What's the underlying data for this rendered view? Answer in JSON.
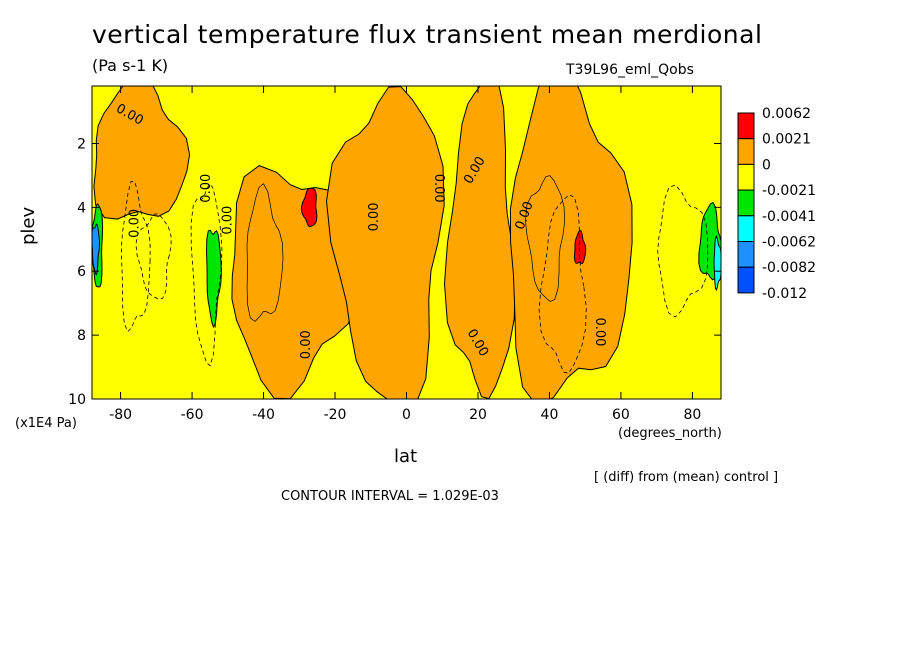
{
  "chart_data": {
    "type": "heatmap",
    "title": "vertical temperature flux transient mean merdional",
    "units": "(Pa s-1 K)",
    "run_id": "T39L96_eml_Qobs",
    "xlabel": "lat",
    "x_units": "(degrees_north)",
    "ylabel": "plev",
    "y_units": "(x1E4 Pa)",
    "xlim": [
      -88,
      88
    ],
    "ylim": [
      10,
      0.2
    ],
    "x_ticks": [
      -80,
      -60,
      -40,
      -20,
      0,
      20,
      40,
      60,
      80
    ],
    "y_ticks": [
      2,
      4,
      6,
      8,
      10
    ],
    "contour_labels": [
      "0.00",
      "0.00",
      "0.00",
      "0.00",
      "0.00",
      "0.00",
      "0.00",
      "0.00",
      "0.00",
      "0.00",
      "0.00"
    ],
    "contour_interval_text": "CONTOUR INTERVAL = 1.029E-03",
    "note": "[ (diff) from (mean) control ]",
    "legend": {
      "labels": [
        "0.0062",
        "0.0021",
        "0",
        "-0.0021",
        "-0.0041",
        "-0.0062",
        "-0.0082",
        "-0.012"
      ],
      "colors": [
        "#ff0000",
        "#ffa500",
        "#ffff00",
        "#00e600",
        "#00ffff",
        "#1e90ff",
        "#0050ff"
      ]
    },
    "levels_colors": {
      "positive_high": "#ff0000",
      "positive": "#ffa500",
      "near_zero": "#ffff00",
      "negative": "#00e600",
      "negative_strong": "#00ffff",
      "negative_stronger": "#1e90ff",
      "negative_max": "#0050ff"
    },
    "regions": [
      {
        "level": "positive",
        "x": [
          -88,
          -62
        ],
        "y": [
          0.2,
          4.5
        ],
        "note": "orange top-left hook"
      },
      {
        "level": "positive",
        "x": [
          -50,
          -15
        ],
        "y": [
          2.8,
          9.5
        ],
        "note": "orange SH midlatitude band"
      },
      {
        "level": "positive_high",
        "x": [
          -29,
          -25
        ],
        "y": [
          3.4,
          4.6
        ],
        "note": "red max near -27"
      },
      {
        "level": "positive",
        "x": [
          -20,
          10
        ],
        "y": [
          0.2,
          10
        ],
        "note": "orange central column"
      },
      {
        "level": "positive",
        "x": [
          12,
          30
        ],
        "y": [
          0.2,
          10
        ],
        "note": "orange NH subtropics"
      },
      {
        "level": "positive",
        "x": [
          28,
          62
        ],
        "y": [
          0.2,
          10
        ],
        "note": "orange NH midlatitude band"
      },
      {
        "level": "positive_high",
        "x": [
          47,
          50
        ],
        "y": [
          4.8,
          5.8
        ],
        "note": "red max near 48"
      },
      {
        "level": "negative",
        "x": [
          -56,
          -52
        ],
        "y": [
          4.6,
          7.5
        ],
        "note": "green patch near -54"
      },
      {
        "level": "negative",
        "x": [
          -88,
          -85
        ],
        "y": [
          3.9,
          6.5
        ],
        "note": "green edge SH"
      },
      {
        "level": "negative_stronger",
        "x": [
          -88,
          -86
        ],
        "y": [
          4.5,
          6
        ],
        "note": "blue edge SH"
      },
      {
        "level": "negative",
        "x": [
          82,
          88
        ],
        "y": [
          4,
          6.3
        ],
        "note": "green edge NH"
      },
      {
        "level": "negative_strong",
        "x": [
          86,
          88
        ],
        "y": [
          5,
          6.5
        ],
        "note": "cyan edge NH"
      }
    ]
  }
}
